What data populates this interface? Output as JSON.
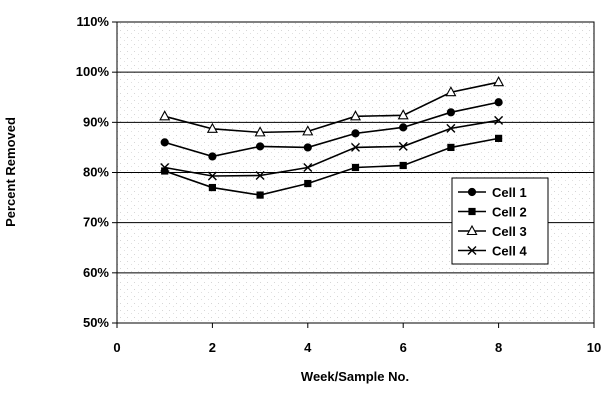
{
  "chart_data": {
    "type": "line",
    "title": "",
    "xlabel": "Week/Sample No.",
    "ylabel": "Percent Removed",
    "xlim": [
      0,
      10
    ],
    "ylim": [
      50,
      110
    ],
    "x_ticks": [
      0,
      2,
      4,
      6,
      8,
      10
    ],
    "y_ticks": [
      50,
      60,
      70,
      80,
      90,
      100,
      110
    ],
    "x_tick_labels": [
      "0",
      "2",
      "4",
      "6",
      "8",
      "10"
    ],
    "y_tick_labels": [
      "50%",
      "60%",
      "70%",
      "80%",
      "90%",
      "100%",
      "110%"
    ],
    "grid": "horizontal",
    "legend_position": "right",
    "x": [
      1,
      2,
      3,
      4,
      5,
      6,
      7,
      8
    ],
    "series": [
      {
        "name": "Cell 1",
        "marker": "circle",
        "values": [
          86.0,
          83.2,
          85.2,
          85.0,
          87.8,
          89.0,
          92.0,
          94.0
        ]
      },
      {
        "name": "Cell 2",
        "marker": "square",
        "values": [
          80.3,
          77.0,
          75.5,
          77.8,
          81.0,
          81.4,
          85.0,
          86.8
        ]
      },
      {
        "name": "Cell 3",
        "marker": "triangle",
        "values": [
          91.2,
          88.7,
          88.0,
          88.2,
          91.2,
          91.4,
          96.0,
          98.0
        ]
      },
      {
        "name": "Cell 4",
        "marker": "x",
        "values": [
          81.0,
          79.3,
          79.4,
          81.0,
          85.0,
          85.2,
          88.8,
          90.4
        ]
      }
    ]
  }
}
